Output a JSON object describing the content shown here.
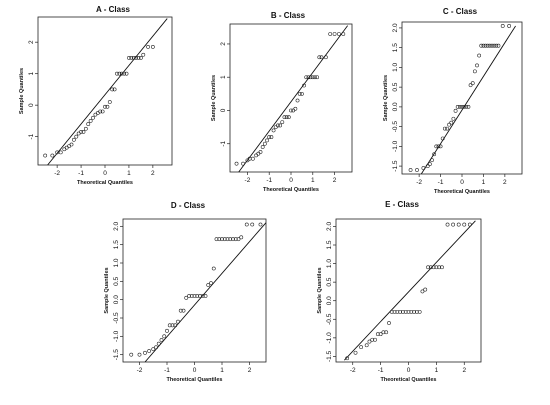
{
  "chart_data": [
    {
      "type": "scatter",
      "title": "A - Class",
      "xlabel": "Theoretical Quantiles",
      "ylabel": "Sample Quantiles",
      "xlim": [
        -2.8,
        2.8
      ],
      "ylim": [
        -1.9,
        2.8
      ],
      "xticks": [
        -2,
        -1,
        0,
        1,
        2
      ],
      "yticks": [
        -1,
        0,
        1,
        2
      ],
      "reference_line": [
        [
          -2.4,
          -1.9
        ],
        [
          2.6,
          2.75
        ]
      ],
      "points": {
        "x": [
          -2.5,
          -2.2,
          -2.0,
          -1.85,
          -1.7,
          -1.6,
          -1.5,
          -1.4,
          -1.3,
          -1.2,
          -1.1,
          -1.0,
          -0.9,
          -0.8,
          -0.7,
          -0.6,
          -0.5,
          -0.4,
          -0.3,
          -0.2,
          -0.1,
          0.0,
          0.1,
          0.2,
          0.3,
          0.4,
          0.5,
          0.6,
          0.7,
          0.8,
          0.9,
          1.0,
          1.1,
          1.2,
          1.3,
          1.4,
          1.5,
          1.6,
          1.8,
          2.0
        ],
        "y": [
          -1.6,
          -1.6,
          -1.5,
          -1.5,
          -1.4,
          -1.35,
          -1.3,
          -1.25,
          -1.1,
          -1.0,
          -0.9,
          -0.85,
          -0.85,
          -0.75,
          -0.6,
          -0.5,
          -0.4,
          -0.3,
          -0.25,
          -0.2,
          -0.2,
          -0.05,
          -0.05,
          0.1,
          0.5,
          0.5,
          1.0,
          1.0,
          1.0,
          1.0,
          1.0,
          1.5,
          1.5,
          1.5,
          1.5,
          1.5,
          1.5,
          1.6,
          1.85,
          1.85
        ]
      }
    },
    {
      "type": "scatter",
      "title": "B - Class",
      "xlabel": "Theoretical Quantiles",
      "ylabel": "Sample Quantiles",
      "xlim": [
        -2.8,
        2.8
      ],
      "ylim": [
        -1.85,
        2.6
      ],
      "xticks": [
        -2,
        -1,
        0,
        1,
        2
      ],
      "yticks": [
        -1,
        0,
        1,
        2
      ],
      "reference_line": [
        [
          -2.4,
          -1.85
        ],
        [
          2.6,
          2.55
        ]
      ],
      "points": {
        "x": [
          -2.5,
          -2.2,
          -2.0,
          -1.9,
          -1.75,
          -1.6,
          -1.5,
          -1.4,
          -1.3,
          -1.2,
          -1.1,
          -1.0,
          -0.9,
          -0.8,
          -0.7,
          -0.6,
          -0.5,
          -0.4,
          -0.3,
          -0.2,
          -0.1,
          0.0,
          0.1,
          0.2,
          0.3,
          0.4,
          0.5,
          0.6,
          0.7,
          0.8,
          0.9,
          1.0,
          1.1,
          1.2,
          1.3,
          1.4,
          1.6,
          1.8,
          2.0,
          2.2,
          2.4
        ],
        "y": [
          -1.6,
          -1.6,
          -1.5,
          -1.45,
          -1.45,
          -1.35,
          -1.3,
          -1.25,
          -1.1,
          -1.0,
          -0.9,
          -0.8,
          -0.8,
          -0.6,
          -0.5,
          -0.45,
          -0.45,
          -0.35,
          -0.2,
          -0.2,
          -0.2,
          0.0,
          0.0,
          0.05,
          0.3,
          0.5,
          0.5,
          0.75,
          1.0,
          1.0,
          1.0,
          1.0,
          1.0,
          1.0,
          1.6,
          1.6,
          1.6,
          2.3,
          2.3,
          2.3,
          2.3
        ]
      }
    },
    {
      "type": "scatter",
      "title": "C - Class",
      "xlabel": "Theoretical Quantiles",
      "ylabel": "Sample Quantiles",
      "xlim": [
        -2.8,
        2.8
      ],
      "ylim": [
        -1.7,
        2.15
      ],
      "xticks": [
        -2,
        -1,
        0,
        1,
        2
      ],
      "yticks": [
        -1.5,
        -1.0,
        -0.5,
        0.0,
        0.5,
        1.0,
        1.5,
        2.0
      ],
      "reference_line": [
        [
          -1.9,
          -1.7
        ],
        [
          2.5,
          2.05
        ]
      ],
      "points": {
        "x": [
          -2.4,
          -2.1,
          -1.8,
          -1.6,
          -1.5,
          -1.4,
          -1.3,
          -1.2,
          -1.1,
          -1.0,
          -0.9,
          -0.8,
          -0.7,
          -0.6,
          -0.5,
          -0.4,
          -0.3,
          -0.2,
          -0.1,
          0.0,
          0.1,
          0.2,
          0.3,
          0.4,
          0.5,
          0.6,
          0.7,
          0.8,
          0.9,
          1.0,
          1.1,
          1.2,
          1.3,
          1.4,
          1.5,
          1.6,
          1.7,
          1.9,
          2.2
        ],
        "y": [
          -1.6,
          -1.6,
          -1.55,
          -1.5,
          -1.45,
          -1.35,
          -1.2,
          -1.0,
          -1.0,
          -1.0,
          -0.8,
          -0.55,
          -0.55,
          -0.45,
          -0.4,
          -0.3,
          -0.1,
          0.0,
          0.0,
          0.0,
          0.0,
          0.0,
          0.0,
          0.55,
          0.6,
          0.9,
          1.05,
          1.3,
          1.55,
          1.55,
          1.55,
          1.55,
          1.55,
          1.55,
          1.55,
          1.55,
          1.55,
          2.05,
          2.05
        ]
      }
    },
    {
      "type": "scatter",
      "title": "D - Class",
      "xlabel": "Theoretical Quantiles",
      "ylabel": "Sample Quantiles",
      "xlim": [
        -2.6,
        2.6
      ],
      "ylim": [
        -1.7,
        2.2
      ],
      "xticks": [
        -2,
        -1,
        0,
        1,
        2
      ],
      "yticks": [
        -1.5,
        -1.0,
        -0.5,
        0.0,
        0.5,
        1.0,
        1.5,
        2.0
      ],
      "reference_line": [
        [
          -1.8,
          -1.7
        ],
        [
          2.6,
          2.1
        ]
      ],
      "points": {
        "x": [
          -2.3,
          -2.0,
          -1.8,
          -1.65,
          -1.5,
          -1.4,
          -1.3,
          -1.2,
          -1.1,
          -1.0,
          -0.9,
          -0.8,
          -0.7,
          -0.6,
          -0.5,
          -0.4,
          -0.3,
          -0.2,
          -0.1,
          0.0,
          0.1,
          0.2,
          0.3,
          0.4,
          0.5,
          0.6,
          0.7,
          0.8,
          0.9,
          1.0,
          1.1,
          1.2,
          1.3,
          1.4,
          1.5,
          1.6,
          1.7,
          1.9,
          2.1,
          2.4
        ],
        "y": [
          -1.5,
          -1.5,
          -1.45,
          -1.4,
          -1.35,
          -1.3,
          -1.2,
          -1.1,
          -1.0,
          -0.85,
          -0.7,
          -0.7,
          -0.7,
          -0.6,
          -0.3,
          -0.3,
          0.05,
          0.1,
          0.1,
          0.1,
          0.1,
          0.1,
          0.1,
          0.1,
          0.4,
          0.45,
          0.85,
          1.65,
          1.65,
          1.65,
          1.65,
          1.65,
          1.65,
          1.65,
          1.65,
          1.65,
          1.7,
          2.05,
          2.05,
          2.05
        ]
      }
    },
    {
      "type": "scatter",
      "title": "E - Class",
      "xlabel": "Theoretical Quantiles",
      "ylabel": "Sample Quantiles",
      "xlim": [
        -2.6,
        2.6
      ],
      "ylim": [
        -1.65,
        2.2
      ],
      "xticks": [
        -2,
        -1,
        0,
        1,
        2
      ],
      "yticks": [
        -1.5,
        -1.0,
        -0.5,
        0.0,
        0.5,
        1.0,
        1.5,
        2.0
      ],
      "reference_line": [
        [
          -2.3,
          -1.6
        ],
        [
          2.4,
          2.15
        ]
      ],
      "points": {
        "x": [
          -2.2,
          -1.9,
          -1.7,
          -1.5,
          -1.4,
          -1.3,
          -1.2,
          -1.1,
          -1.0,
          -0.9,
          -0.8,
          -0.7,
          -0.6,
          -0.5,
          -0.4,
          -0.3,
          -0.2,
          -0.1,
          0.0,
          0.1,
          0.2,
          0.3,
          0.4,
          0.5,
          0.6,
          0.7,
          0.8,
          0.9,
          1.0,
          1.1,
          1.2,
          1.4,
          1.6,
          1.8,
          2.0,
          2.2
        ],
        "y": [
          -1.55,
          -1.4,
          -1.25,
          -1.2,
          -1.1,
          -1.05,
          -1.05,
          -0.9,
          -0.9,
          -0.85,
          -0.85,
          -0.6,
          -0.3,
          -0.3,
          -0.3,
          -0.3,
          -0.3,
          -0.3,
          -0.3,
          -0.3,
          -0.3,
          -0.3,
          -0.3,
          0.25,
          0.3,
          0.9,
          0.9,
          0.9,
          0.9,
          0.9,
          0.9,
          2.05,
          2.05,
          2.05,
          2.05,
          2.05
        ]
      }
    }
  ]
}
